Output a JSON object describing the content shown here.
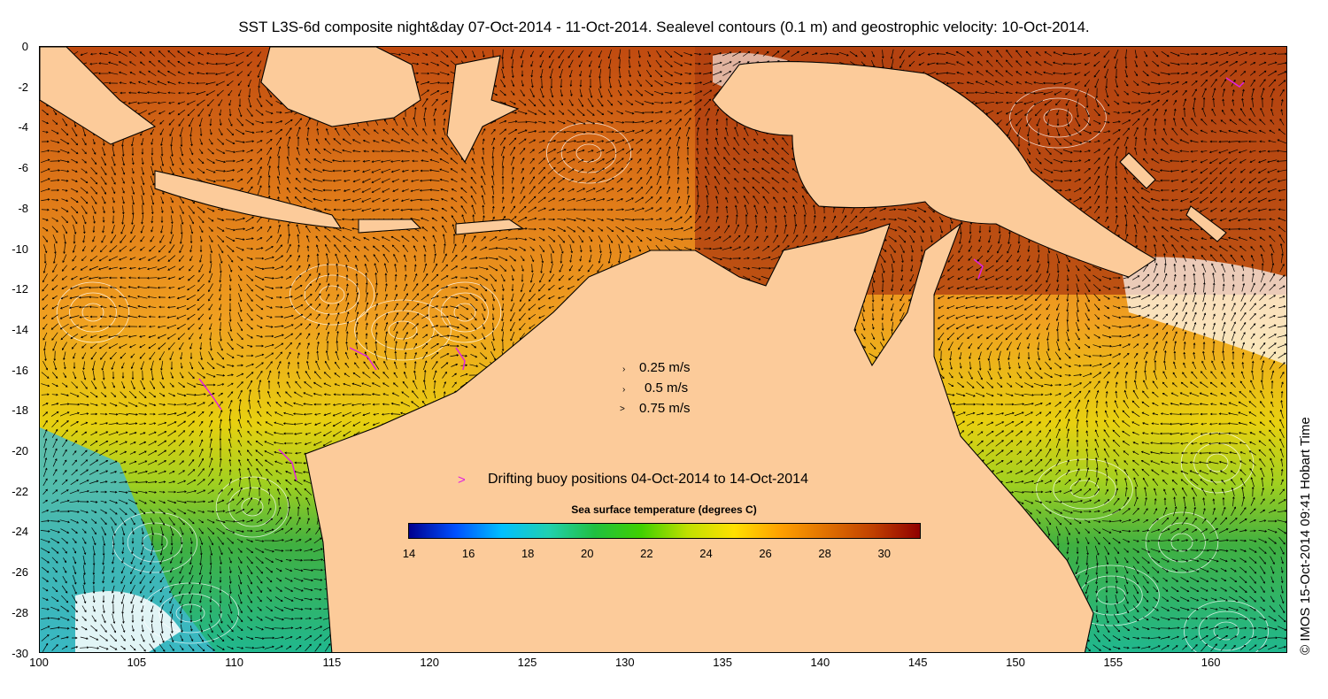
{
  "title": "SST L3S-6d composite night&day 07-Oct-2014 - 11-Oct-2014. Sealevel contours (0.1 m) and geostrophic velocity: 10-Oct-2014.",
  "credit": "© IMOS 15-Oct-2014 09:41 Hobart Time",
  "axes": {
    "y_ticks": [
      "0",
      "-2",
      "-4",
      "-6",
      "-8",
      "-10",
      "-12",
      "-14",
      "-16",
      "-18",
      "-20",
      "-22",
      "-24",
      "-26",
      "-28",
      "-30"
    ],
    "x_ticks": [
      "100",
      "105",
      "110",
      "115",
      "120",
      "125",
      "130",
      "135",
      "140",
      "145",
      "150",
      "155",
      "160"
    ],
    "lon_range": [
      100,
      164
    ],
    "lat_range": [
      -30,
      0
    ]
  },
  "velocity_legend": {
    "entries": [
      {
        "glyph": "›",
        "label": "0.25 m/s"
      },
      {
        "glyph": "›",
        "label": "0.5 m/s"
      },
      {
        "glyph": ">",
        "label": "0.75 m/s"
      }
    ]
  },
  "buoy_legend": {
    "glyph": ">",
    "label": "Drifting buoy positions 04-Oct-2014 to 14-Oct-2014",
    "color": "#e020e0"
  },
  "colorbar": {
    "title": "Sea surface temperature (degrees C)",
    "range": [
      14,
      31.2
    ],
    "tick_labels": [
      "14",
      "16",
      "18",
      "20",
      "22",
      "24",
      "26",
      "28",
      "30"
    ],
    "tick_values": [
      14,
      16,
      18,
      20,
      22,
      24,
      26,
      28,
      30
    ],
    "colormap": [
      "#00008f",
      "#0050ff",
      "#00c0ff",
      "#20d0b0",
      "#20c040",
      "#40d000",
      "#c0e000",
      "#ffe000",
      "#ffa000",
      "#e07000",
      "#c04000",
      "#900000"
    ]
  },
  "colors": {
    "land": "#fccb9a",
    "sst_warm": "#c85a10",
    "sst_mid": "#f0a020",
    "sst_yellow": "#e8d010",
    "sst_green": "#40b040",
    "sst_cool": "#20c0a0",
    "contour": "#ffffff",
    "coast": "#000000",
    "cloud": "#ffffff"
  }
}
